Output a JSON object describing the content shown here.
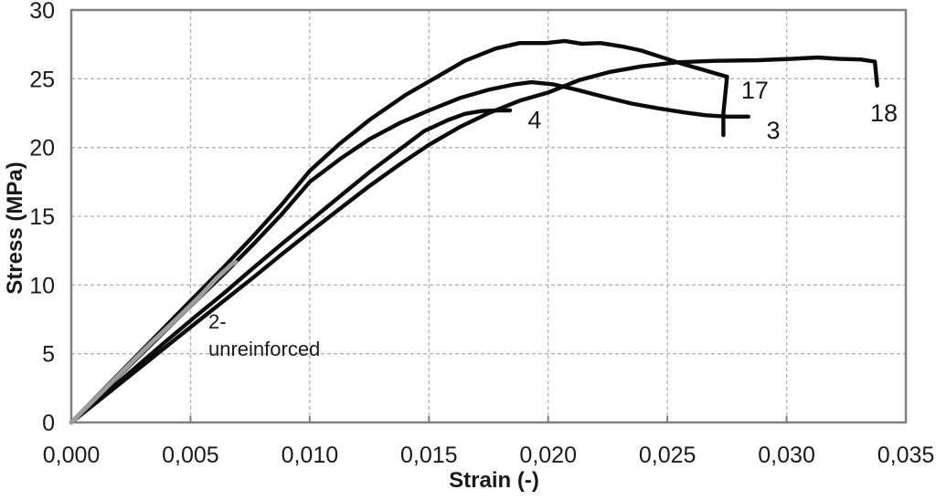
{
  "chart_data": {
    "type": "line",
    "title": "",
    "xlabel": "Strain (-)",
    "ylabel": "Stress (MPa)",
    "xlim": [
      0,
      0.035
    ],
    "ylim": [
      0,
      30
    ],
    "x_ticks": {
      "values": [
        0,
        0.005,
        0.01,
        0.015,
        0.02,
        0.025,
        0.03,
        0.035
      ],
      "labels": [
        "0,000",
        "0,005",
        "0,010",
        "0,015",
        "0,020",
        "0,025",
        "0,030",
        "0,035"
      ]
    },
    "y_ticks": {
      "values": [
        0,
        5,
        10,
        15,
        20,
        25,
        30
      ],
      "labels": [
        "0",
        "5",
        "10",
        "15",
        "20",
        "25",
        "30"
      ]
    },
    "grid": {
      "style": "dashed",
      "horizontal_at": [
        5,
        10,
        15,
        20,
        25
      ],
      "vertical_at": [
        0.005,
        0.01,
        0.015,
        0.02,
        0.025,
        0.03
      ]
    },
    "legend_position": "none-inline-labels",
    "colors": {
      "curve_black": "#0b0b0b",
      "curve_gray": "#9d9d9d",
      "border": "#808080",
      "grid": "#b3b3b3",
      "text": "#1a1a1a",
      "background": "#ffffff"
    },
    "series": [
      {
        "name": "4",
        "color": "#0b0b0b",
        "width": 4.4,
        "points": [
          [
            0,
            0
          ],
          [
            0.0013,
            1.9
          ],
          [
            0.0026,
            3.85
          ],
          [
            0.0039,
            5.8
          ],
          [
            0.0052,
            7.7
          ],
          [
            0.0064,
            9.4
          ],
          [
            0.0076,
            11.2
          ],
          [
            0.0088,
            12.95
          ],
          [
            0.01,
            14.65
          ],
          [
            0.0113,
            16.5
          ],
          [
            0.0125,
            18.2
          ],
          [
            0.0138,
            19.9
          ],
          [
            0.0148,
            21.2
          ],
          [
            0.0158,
            22.0
          ],
          [
            0.0165,
            22.45
          ],
          [
            0.0172,
            22.65
          ],
          [
            0.018,
            22.7
          ],
          [
            0.0184,
            22.7
          ]
        ]
      },
      {
        "name": "3",
        "color": "#0b0b0b",
        "width": 4.4,
        "points": [
          [
            0,
            0
          ],
          [
            0.0013,
            2.2
          ],
          [
            0.0026,
            4.4
          ],
          [
            0.0039,
            6.6
          ],
          [
            0.0052,
            8.8
          ],
          [
            0.0064,
            10.8
          ],
          [
            0.0076,
            12.9
          ],
          [
            0.0088,
            15.1
          ],
          [
            0.01,
            17.5
          ],
          [
            0.0113,
            19.2
          ],
          [
            0.0125,
            20.6
          ],
          [
            0.0138,
            21.8
          ],
          [
            0.015,
            22.7
          ],
          [
            0.0163,
            23.6
          ],
          [
            0.0175,
            24.2
          ],
          [
            0.0186,
            24.6
          ],
          [
            0.0193,
            24.75
          ],
          [
            0.0202,
            24.6
          ],
          [
            0.0212,
            24.2
          ],
          [
            0.0223,
            23.7
          ],
          [
            0.0235,
            23.2
          ],
          [
            0.0246,
            22.85
          ],
          [
            0.0257,
            22.55
          ],
          [
            0.0266,
            22.35
          ],
          [
            0.0275,
            22.25
          ],
          [
            0.0284,
            22.25
          ]
        ]
      },
      {
        "name": "18",
        "color": "#0b0b0b",
        "width": 4.4,
        "points": [
          [
            0,
            0
          ],
          [
            0.0013,
            1.8
          ],
          [
            0.0026,
            3.6
          ],
          [
            0.0039,
            5.4
          ],
          [
            0.0052,
            7.2
          ],
          [
            0.0064,
            8.85
          ],
          [
            0.0076,
            10.5
          ],
          [
            0.0088,
            12.2
          ],
          [
            0.01,
            13.85
          ],
          [
            0.0113,
            15.6
          ],
          [
            0.0125,
            17.2
          ],
          [
            0.0138,
            18.8
          ],
          [
            0.015,
            20.2
          ],
          [
            0.0163,
            21.5
          ],
          [
            0.0175,
            22.5
          ],
          [
            0.0188,
            23.4
          ],
          [
            0.02,
            24.0
          ],
          [
            0.0213,
            24.9
          ],
          [
            0.0226,
            25.5
          ],
          [
            0.0239,
            25.9
          ],
          [
            0.0254,
            26.2
          ],
          [
            0.027,
            26.3
          ],
          [
            0.0288,
            26.35
          ],
          [
            0.0302,
            26.45
          ],
          [
            0.0313,
            26.55
          ],
          [
            0.0322,
            26.45
          ],
          [
            0.0331,
            26.4
          ],
          [
            0.0337,
            26.25
          ],
          [
            0.0338,
            24.5
          ]
        ]
      },
      {
        "name": "17",
        "color": "#0b0b0b",
        "width": 4.4,
        "points": [
          [
            0,
            0
          ],
          [
            0.0013,
            2.3
          ],
          [
            0.0026,
            4.6
          ],
          [
            0.0039,
            6.9
          ],
          [
            0.0052,
            9.2
          ],
          [
            0.0064,
            11.3
          ],
          [
            0.0076,
            13.5
          ],
          [
            0.0088,
            15.8
          ],
          [
            0.01,
            18.3
          ],
          [
            0.0112,
            20.2
          ],
          [
            0.0125,
            22.0
          ],
          [
            0.014,
            23.8
          ],
          [
            0.0152,
            25.0
          ],
          [
            0.0165,
            26.3
          ],
          [
            0.0178,
            27.2
          ],
          [
            0.0188,
            27.6
          ],
          [
            0.0199,
            27.6
          ],
          [
            0.0207,
            27.75
          ],
          [
            0.0214,
            27.55
          ],
          [
            0.0222,
            27.6
          ],
          [
            0.0231,
            27.35
          ],
          [
            0.0239,
            27.05
          ],
          [
            0.0247,
            26.6
          ],
          [
            0.0256,
            26.1
          ],
          [
            0.0264,
            25.7
          ],
          [
            0.0271,
            25.35
          ],
          [
            0.0275,
            25.15
          ],
          [
            0.02735,
            22.5
          ],
          [
            0.02735,
            20.9
          ]
        ]
      },
      {
        "name": "2-unreinforced",
        "color": "#9d9d9d",
        "width": 5,
        "points": [
          [
            0,
            0
          ],
          [
            0.0011,
            1.9
          ],
          [
            0.0022,
            3.8
          ],
          [
            0.0033,
            5.7
          ],
          [
            0.0044,
            7.5
          ],
          [
            0.0054,
            9.2
          ],
          [
            0.0061,
            10.5
          ],
          [
            0.0066,
            11.3
          ],
          [
            0.00675,
            11.55
          ],
          [
            0.0069,
            11.65
          ]
        ]
      }
    ],
    "annotations": [
      {
        "series": "2-unreinforced",
        "lines": [
          "2-",
          "unreinforced"
        ],
        "x": 0.00575,
        "y": 6.85,
        "anchor": "start",
        "font_px": 22,
        "line_height_px": 30
      },
      {
        "series": "4",
        "lines": [
          "4"
        ],
        "x": 0.01943,
        "y": 21.4,
        "anchor": "middle",
        "font_px": 27,
        "line_height_px": 30
      },
      {
        "series": "17",
        "lines": [
          "17"
        ],
        "x": 0.02867,
        "y": 23.55,
        "anchor": "middle",
        "font_px": 27,
        "line_height_px": 30
      },
      {
        "series": "3",
        "lines": [
          "3"
        ],
        "x": 0.02944,
        "y": 20.65,
        "anchor": "middle",
        "font_px": 27,
        "line_height_px": 30
      },
      {
        "series": "18",
        "lines": [
          "18"
        ],
        "x": 0.03408,
        "y": 21.9,
        "anchor": "middle",
        "font_px": 27,
        "line_height_px": 30
      }
    ]
  }
}
